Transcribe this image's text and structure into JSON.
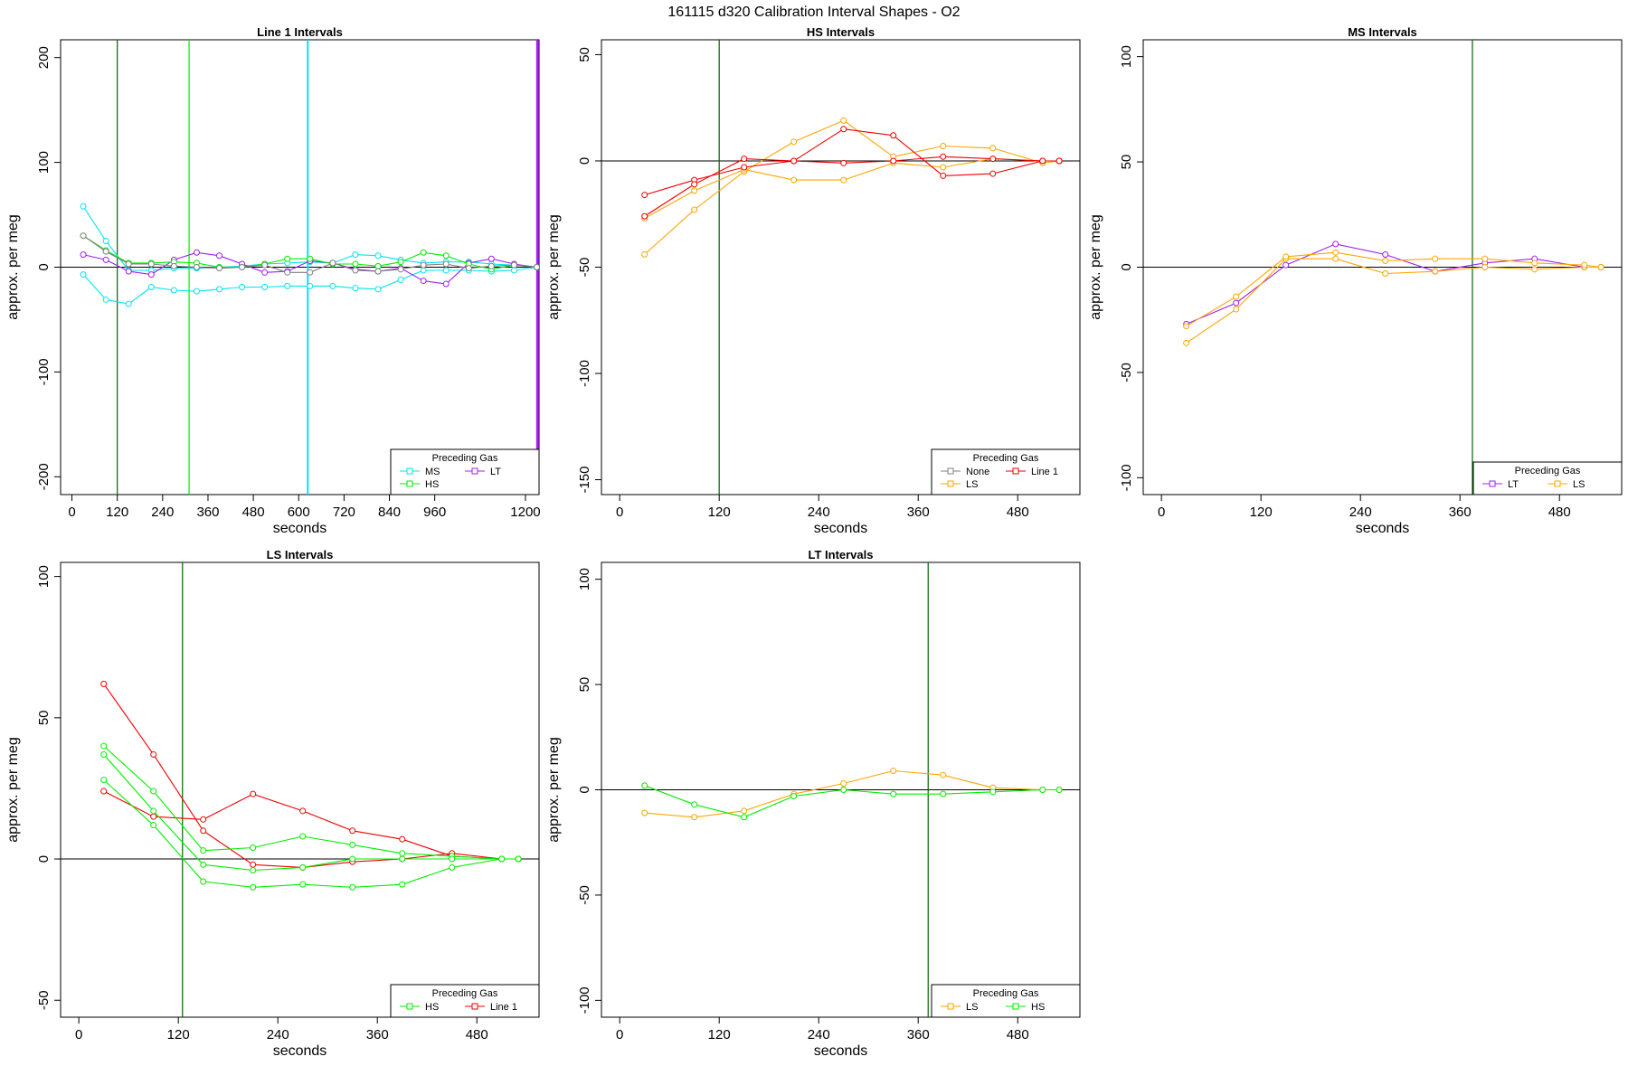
{
  "figure": {
    "title": "161115   d320   Calibration Interval Shapes - O2"
  },
  "colors": {
    "None": "#808080",
    "MS": "#00e5ee",
    "HS": "#00ee00",
    "LT": "#a020f0",
    "LS": "#ffa500",
    "Line 1": "#ee0000",
    "vline": "#006400"
  },
  "chart_data": [
    {
      "type": "line",
      "title": "Line 1 Intervals",
      "xlabel": "seconds",
      "ylabel": "approx. per meg",
      "xlim": [
        -30,
        1236
      ],
      "ylim": [
        -217,
        217
      ],
      "xticks": [
        0,
        120,
        240,
        360,
        480,
        600,
        720,
        840,
        960,
        1200
      ],
      "yticks": [
        -200,
        -100,
        0,
        100,
        200
      ],
      "vlines": [
        {
          "x": 120,
          "color": "#006400"
        },
        {
          "x": 310,
          "color": "#00ee00"
        },
        {
          "x": 624,
          "color": "#00e5ee",
          "width": 2
        },
        {
          "x": 1232,
          "color": "#a020f0",
          "width": 3
        }
      ],
      "legend": {
        "title": "Preceding Gas",
        "position": "bottom-right",
        "columns": 2,
        "entries": [
          "MS",
          "LT",
          "HS"
        ]
      },
      "series": [
        {
          "name": "MS",
          "x": [
            30,
            90,
            150,
            210,
            270,
            330,
            390,
            450,
            510,
            570,
            630,
            690,
            750,
            810,
            870,
            930,
            990,
            1050,
            1110,
            1170,
            1230
          ],
          "values": [
            58,
            25,
            -3,
            -3,
            -1,
            -1,
            0,
            1,
            3,
            4,
            5,
            4,
            12,
            11,
            7,
            4,
            5,
            5,
            3,
            2,
            0
          ]
        },
        {
          "name": "MS",
          "x": [
            30,
            90,
            150,
            210,
            270,
            330,
            390,
            450,
            510,
            570,
            630,
            690,
            750,
            810,
            870,
            930,
            990,
            1050,
            1110,
            1170,
            1230
          ],
          "values": [
            -7,
            -31,
            -35,
            -19,
            -22,
            -23,
            -21,
            -19,
            -19,
            -18,
            -18,
            -18,
            -20,
            -21,
            -12,
            -3,
            -3,
            -3,
            -4,
            -3,
            0
          ]
        },
        {
          "name": "LT",
          "x": [
            30,
            90,
            150,
            210,
            270,
            330,
            390,
            450,
            510,
            570,
            630,
            690,
            750,
            810,
            870,
            930,
            990,
            1050,
            1110,
            1170,
            1230
          ],
          "values": [
            12,
            7,
            -4,
            -7,
            7,
            14,
            11,
            3,
            -5,
            -4,
            6,
            4,
            -2,
            -4,
            -1,
            -13,
            -16,
            4,
            8,
            3,
            0
          ]
        },
        {
          "name": "HS",
          "x": [
            30,
            90,
            150,
            210,
            270,
            330,
            390,
            450,
            510,
            570,
            630,
            690,
            750,
            810,
            870,
            930,
            990,
            1050,
            1110,
            1170,
            1230
          ],
          "values": [
            30,
            16,
            4,
            4,
            5,
            4,
            0,
            0,
            3,
            8,
            8,
            3,
            3,
            1,
            5,
            14,
            11,
            3,
            -2,
            2,
            0
          ]
        },
        {
          "name": "None",
          "x": [
            30,
            90,
            150,
            210,
            270,
            330,
            390,
            450,
            510,
            570,
            630,
            690,
            750,
            810,
            870,
            930,
            990,
            1050,
            1110,
            1170,
            1230
          ],
          "values": [
            30,
            15,
            3,
            3,
            1,
            0,
            -1,
            0,
            2,
            -5,
            -5,
            4,
            -3,
            -4,
            -2,
            2,
            3,
            -1,
            1,
            2,
            0
          ]
        }
      ]
    },
    {
      "type": "line",
      "title": "HS Intervals",
      "xlabel": "seconds",
      "ylabel": "approx. per meg",
      "xlim": [
        -22,
        555
      ],
      "ylim": [
        -157,
        57
      ],
      "xticks": [
        0,
        120,
        240,
        360,
        480
      ],
      "yticks": [
        -150,
        -100,
        -50,
        0,
        50
      ],
      "vlines": [
        {
          "x": 120,
          "color": "#006400"
        }
      ],
      "legend": {
        "title": "Preceding Gas",
        "position": "bottom-right",
        "columns": 2,
        "entries": [
          "None",
          "Line 1",
          "LS"
        ]
      },
      "series": [
        {
          "name": "LS",
          "x": [
            30,
            90,
            150,
            210,
            270,
            330,
            390,
            450,
            510,
            530
          ],
          "values": [
            -44,
            -23,
            -5,
            9,
            19,
            2,
            7,
            6,
            -1,
            0
          ]
        },
        {
          "name": "LS",
          "x": [
            30,
            90,
            150,
            210,
            270,
            330,
            390,
            450,
            510,
            530
          ],
          "values": [
            -27,
            -14,
            -4,
            -9,
            -9,
            -1,
            -3,
            1,
            0,
            0
          ]
        },
        {
          "name": "Line 1",
          "x": [
            30,
            90,
            150,
            210,
            270,
            330,
            390,
            450,
            510,
            530
          ],
          "values": [
            -16,
            -9,
            -3,
            0,
            15,
            12,
            -7,
            -6,
            0,
            0
          ]
        },
        {
          "name": "Line 1",
          "x": [
            30,
            90,
            150,
            210,
            270,
            330,
            390,
            450,
            510,
            530
          ],
          "values": [
            -26,
            -11,
            1,
            0,
            -1,
            0,
            2,
            1,
            0,
            0
          ]
        }
      ]
    },
    {
      "type": "line",
      "title": "MS Intervals",
      "xlabel": "seconds",
      "ylabel": "approx. per meg",
      "xlim": [
        -22,
        555
      ],
      "ylim": [
        -108,
        108
      ],
      "xticks": [
        0,
        120,
        240,
        360,
        480
      ],
      "yticks": [
        -100,
        -50,
        0,
        50,
        100
      ],
      "vlines": [
        {
          "x": 375,
          "color": "#006400"
        }
      ],
      "legend": {
        "title": "Preceding Gas",
        "position": "bottom-right",
        "columns": 2,
        "entries": [
          "LT",
          "LS"
        ]
      },
      "series": [
        {
          "name": "LT",
          "x": [
            30,
            90,
            150,
            210,
            270,
            330,
            390,
            450,
            510,
            530
          ],
          "values": [
            -27,
            -17,
            1,
            11,
            6,
            -2,
            2,
            4,
            0,
            0
          ]
        },
        {
          "name": "LS",
          "x": [
            30,
            90,
            150,
            210,
            270,
            330,
            390,
            450,
            510,
            530
          ],
          "values": [
            -36,
            -20,
            4,
            4,
            -3,
            -2,
            0,
            -1,
            0,
            0
          ]
        },
        {
          "name": "LS",
          "x": [
            30,
            90,
            150,
            210,
            270,
            330,
            390,
            450,
            510,
            530
          ],
          "values": [
            -28,
            -14,
            5,
            7,
            3,
            4,
            4,
            2,
            1,
            0
          ]
        }
      ]
    },
    {
      "type": "line",
      "title": "LS Intervals",
      "xlabel": "seconds",
      "ylabel": "approx. per meg",
      "xlim": [
        -22,
        555
      ],
      "ylim": [
        -56,
        105
      ],
      "xticks": [
        0,
        120,
        240,
        360,
        480
      ],
      "yticks": [
        -50,
        0,
        50,
        100
      ],
      "vlines": [
        {
          "x": 125,
          "color": "#006400"
        }
      ],
      "legend": {
        "title": "Preceding Gas",
        "position": "bottom-right",
        "columns": 2,
        "entries": [
          "HS",
          "Line 1"
        ]
      },
      "series": [
        {
          "name": "Line 1",
          "x": [
            30,
            90,
            150,
            210,
            270,
            330,
            390,
            450,
            510,
            530
          ],
          "values": [
            62,
            37,
            10,
            -2,
            -3,
            -1,
            0,
            2,
            0,
            0
          ]
        },
        {
          "name": "Line 1",
          "x": [
            30,
            90,
            150,
            210,
            270,
            330,
            390,
            450,
            510,
            530
          ],
          "values": [
            24,
            15,
            14,
            23,
            17,
            10,
            7,
            1,
            0,
            0
          ]
        },
        {
          "name": "HS",
          "x": [
            30,
            90,
            150,
            210,
            270,
            330,
            390,
            450,
            510,
            530
          ],
          "values": [
            40,
            24,
            3,
            4,
            8,
            5,
            2,
            1,
            0,
            0
          ]
        },
        {
          "name": "HS",
          "x": [
            30,
            90,
            150,
            210,
            270,
            330,
            390,
            450,
            510,
            530
          ],
          "values": [
            37,
            17,
            -2,
            -4,
            -3,
            0,
            0,
            0,
            0,
            0
          ]
        },
        {
          "name": "HS",
          "x": [
            30,
            90,
            150,
            210,
            270,
            330,
            390,
            450,
            510,
            530
          ],
          "values": [
            28,
            12,
            -8,
            -10,
            -9,
            -10,
            -9,
            -3,
            0,
            0
          ]
        }
      ]
    },
    {
      "type": "line",
      "title": "LT Intervals",
      "xlabel": "seconds",
      "ylabel": "approx. per meg",
      "xlim": [
        -22,
        555
      ],
      "ylim": [
        -108,
        108
      ],
      "xticks": [
        0,
        120,
        240,
        360,
        480
      ],
      "yticks": [
        -100,
        -50,
        0,
        50,
        100
      ],
      "vlines": [
        {
          "x": 372,
          "color": "#006400"
        }
      ],
      "legend": {
        "title": "Preceding Gas",
        "position": "bottom-right",
        "columns": 2,
        "entries": [
          "LS",
          "HS"
        ]
      },
      "series": [
        {
          "name": "LS",
          "x": [
            30,
            90,
            150,
            210,
            270,
            330,
            390,
            450,
            510,
            530
          ],
          "values": [
            -11,
            -13,
            -10,
            -2,
            3,
            9,
            7,
            1,
            0,
            0
          ]
        },
        {
          "name": "HS",
          "x": [
            30,
            90,
            150,
            210,
            270,
            330,
            390,
            450,
            510,
            530
          ],
          "values": [
            2,
            -7,
            -13,
            -3,
            0,
            -2,
            -2,
            -1,
            0,
            0
          ]
        }
      ]
    }
  ]
}
